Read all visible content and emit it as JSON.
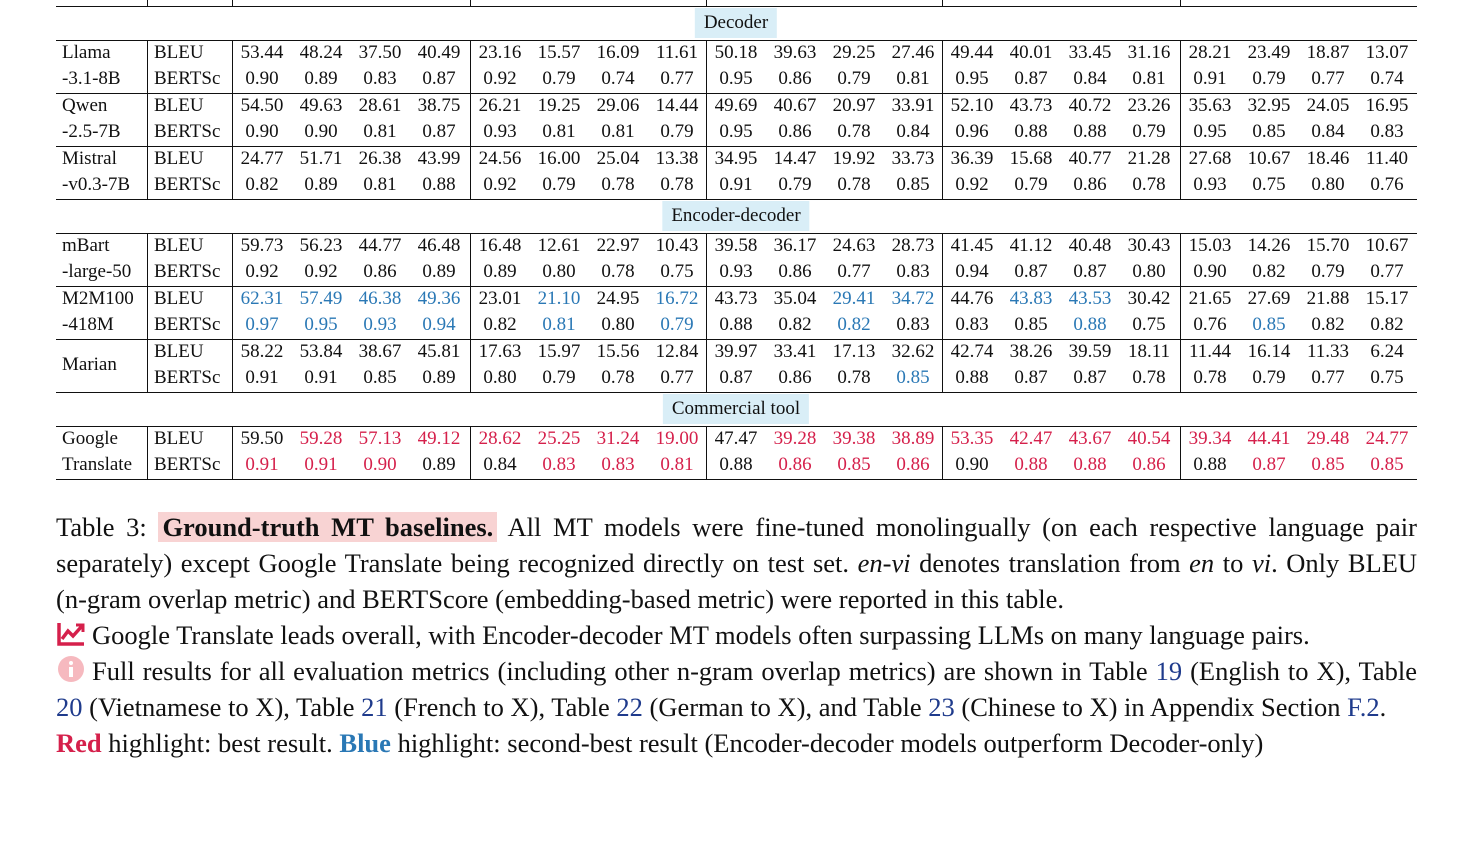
{
  "palette": {
    "k": "#111111",
    "b": "#2a78b5",
    "r": "#d5204b"
  },
  "table": {
    "sections": [
      {
        "title": "Decoder",
        "models": [
          {
            "name": [
              "Llama",
              "-3.1-8B"
            ],
            "rows": [
              {
                "metric": "BLEU",
                "values": [
                  "53.44",
                  "48.24",
                  "37.50",
                  "40.49",
                  "23.16",
                  "15.57",
                  "16.09",
                  "11.61",
                  "50.18",
                  "39.63",
                  "29.25",
                  "27.46",
                  "49.44",
                  "40.01",
                  "33.45",
                  "31.16",
                  "28.21",
                  "23.49",
                  "18.87",
                  "13.07"
                ],
                "tones": "kkkkkkkkkkkkkkkkkkkk"
              },
              {
                "metric": "BERTSc",
                "values": [
                  "0.90",
                  "0.89",
                  "0.83",
                  "0.87",
                  "0.92",
                  "0.79",
                  "0.74",
                  "0.77",
                  "0.95",
                  "0.86",
                  "0.79",
                  "0.81",
                  "0.95",
                  "0.87",
                  "0.84",
                  "0.81",
                  "0.91",
                  "0.79",
                  "0.77",
                  "0.74"
                ],
                "tones": "kkkkkkkkkkkkkkkkkkkk"
              }
            ]
          },
          {
            "name": [
              "Qwen",
              "-2.5-7B"
            ],
            "rows": [
              {
                "metric": "BLEU",
                "values": [
                  "54.50",
                  "49.63",
                  "28.61",
                  "38.75",
                  "26.21",
                  "19.25",
                  "29.06",
                  "14.44",
                  "49.69",
                  "40.67",
                  "20.97",
                  "33.91",
                  "52.10",
                  "43.73",
                  "40.72",
                  "23.26",
                  "35.63",
                  "32.95",
                  "24.05",
                  "16.95"
                ],
                "tones": "kkkkkkkkkkkkkkkkkkkk"
              },
              {
                "metric": "BERTSc",
                "values": [
                  "0.90",
                  "0.90",
                  "0.81",
                  "0.87",
                  "0.93",
                  "0.81",
                  "0.81",
                  "0.79",
                  "0.95",
                  "0.86",
                  "0.78",
                  "0.84",
                  "0.96",
                  "0.88",
                  "0.88",
                  "0.79",
                  "0.95",
                  "0.85",
                  "0.84",
                  "0.83"
                ],
                "tones": "kkkkkkkkkkkkkkkkkkkk"
              }
            ]
          },
          {
            "name": [
              "Mistral",
              "-v0.3-7B"
            ],
            "rows": [
              {
                "metric": "BLEU",
                "values": [
                  "24.77",
                  "51.71",
                  "26.38",
                  "43.99",
                  "24.56",
                  "16.00",
                  "25.04",
                  "13.38",
                  "34.95",
                  "14.47",
                  "19.92",
                  "33.73",
                  "36.39",
                  "15.68",
                  "40.77",
                  "21.28",
                  "27.68",
                  "10.67",
                  "18.46",
                  "11.40"
                ],
                "tones": "kkkkkkkkkkkkkkkkkkkk"
              },
              {
                "metric": "BERTSc",
                "values": [
                  "0.82",
                  "0.89",
                  "0.81",
                  "0.88",
                  "0.92",
                  "0.79",
                  "0.78",
                  "0.78",
                  "0.91",
                  "0.79",
                  "0.78",
                  "0.85",
                  "0.92",
                  "0.79",
                  "0.86",
                  "0.78",
                  "0.93",
                  "0.75",
                  "0.80",
                  "0.76"
                ],
                "tones": "kkkkkkkkkkkkkkkkkkkk"
              }
            ]
          }
        ]
      },
      {
        "title": "Encoder-decoder",
        "models": [
          {
            "name": [
              "mBart",
              "-large-50"
            ],
            "rows": [
              {
                "metric": "BLEU",
                "values": [
                  "59.73",
                  "56.23",
                  "44.77",
                  "46.48",
                  "16.48",
                  "12.61",
                  "22.97",
                  "10.43",
                  "39.58",
                  "36.17",
                  "24.63",
                  "28.73",
                  "41.45",
                  "41.12",
                  "40.48",
                  "30.43",
                  "15.03",
                  "14.26",
                  "15.70",
                  "10.67"
                ],
                "tones": "kkkkkkkkkkkkkkkkkkkk"
              },
              {
                "metric": "BERTSc",
                "values": [
                  "0.92",
                  "0.92",
                  "0.86",
                  "0.89",
                  "0.89",
                  "0.80",
                  "0.78",
                  "0.75",
                  "0.93",
                  "0.86",
                  "0.77",
                  "0.83",
                  "0.94",
                  "0.87",
                  "0.87",
                  "0.80",
                  "0.90",
                  "0.82",
                  "0.79",
                  "0.77"
                ],
                "tones": "kkkkkkkkkkkkkkkkkkkk"
              }
            ]
          },
          {
            "name": [
              "M2M100",
              "-418M"
            ],
            "rows": [
              {
                "metric": "BLEU",
                "values": [
                  "62.31",
                  "57.49",
                  "46.38",
                  "49.36",
                  "23.01",
                  "21.10",
                  "24.95",
                  "16.72",
                  "43.73",
                  "35.04",
                  "29.41",
                  "34.72",
                  "44.76",
                  "43.83",
                  "43.53",
                  "30.42",
                  "21.65",
                  "27.69",
                  "21.88",
                  "15.17"
                ],
                "tones": "bbbbkbkbkkbbkbbkkkkk"
              },
              {
                "metric": "BERTSc",
                "values": [
                  "0.97",
                  "0.95",
                  "0.93",
                  "0.94",
                  "0.82",
                  "0.81",
                  "0.80",
                  "0.79",
                  "0.88",
                  "0.82",
                  "0.82",
                  "0.83",
                  "0.83",
                  "0.85",
                  "0.88",
                  "0.75",
                  "0.76",
                  "0.85",
                  "0.82",
                  "0.82"
                ],
                "tones": "bbbbkbkbkkbkkkbkkbkk"
              }
            ]
          },
          {
            "name": [
              "Marian"
            ],
            "rows": [
              {
                "metric": "BLEU",
                "values": [
                  "58.22",
                  "53.84",
                  "38.67",
                  "45.81",
                  "17.63",
                  "15.97",
                  "15.56",
                  "12.84",
                  "39.97",
                  "33.41",
                  "17.13",
                  "32.62",
                  "42.74",
                  "38.26",
                  "39.59",
                  "18.11",
                  "11.44",
                  "16.14",
                  "11.33",
                  "6.24"
                ],
                "tones": "kkkkkkkkkkkkkkkkkkkk"
              },
              {
                "metric": "BERTSc",
                "values": [
                  "0.91",
                  "0.91",
                  "0.85",
                  "0.89",
                  "0.80",
                  "0.79",
                  "0.78",
                  "0.77",
                  "0.87",
                  "0.86",
                  "0.78",
                  "0.85",
                  "0.88",
                  "0.87",
                  "0.87",
                  "0.78",
                  "0.78",
                  "0.79",
                  "0.77",
                  "0.75"
                ],
                "tones": "kkkkkkkkkkkbkkkkkkkk"
              }
            ]
          }
        ]
      },
      {
        "title": "Commercial tool",
        "models": [
          {
            "name": [
              "Google",
              "Translate"
            ],
            "rows": [
              {
                "metric": "BLEU",
                "values": [
                  "59.50",
                  "59.28",
                  "57.13",
                  "49.12",
                  "28.62",
                  "25.25",
                  "31.24",
                  "19.00",
                  "47.47",
                  "39.28",
                  "39.38",
                  "38.89",
                  "53.35",
                  "42.47",
                  "43.67",
                  "40.54",
                  "39.34",
                  "44.41",
                  "29.48",
                  "24.77"
                ],
                "tones": "krrrrrrrkrrrrrrrrrrr"
              },
              {
                "metric": "BERTSc",
                "values": [
                  "0.91",
                  "0.91",
                  "0.90",
                  "0.89",
                  "0.84",
                  "0.83",
                  "0.83",
                  "0.81",
                  "0.88",
                  "0.86",
                  "0.85",
                  "0.86",
                  "0.90",
                  "0.88",
                  "0.88",
                  "0.86",
                  "0.88",
                  "0.87",
                  "0.85",
                  "0.85"
                ],
                "tones": "rrrkkrrrkrrrkrrrkrrr"
              }
            ]
          }
        ]
      }
    ]
  },
  "caption": {
    "label": "Table 3:",
    "highlight": "Ground-truth MT baselines.",
    "paragraphs": [
      [
        {
          "text": " All MT models were fine-tuned monolingually (on each respective language pair separately) except Google Translate being recognized directly on test set. "
        },
        {
          "text": "en-vi",
          "style": "italic"
        },
        {
          "text": " denotes translation from "
        },
        {
          "text": "en",
          "style": "italic"
        },
        {
          "text": " to "
        },
        {
          "text": "vi",
          "style": "italic"
        },
        {
          "text": ". Only BLEU (n-gram overlap metric) and BERTScore (embedding-based metric) were reported in this table."
        }
      ],
      [
        {
          "text": "Google Translate leads overall, with Encoder-decoder MT models often surpassing LLMs on many language pairs."
        }
      ],
      [
        {
          "text": "Full results for all evaluation metrics (including other n-gram overlap metrics) are shown in Table "
        },
        {
          "text": "19",
          "style": "link"
        },
        {
          "text": " (English to X), Table "
        },
        {
          "text": "20",
          "style": "link"
        },
        {
          "text": " (Vietnamese to X), Table "
        },
        {
          "text": "21",
          "style": "link"
        },
        {
          "text": " (French to X), Table "
        },
        {
          "text": "22",
          "style": "link"
        },
        {
          "text": " (German to X), and Table "
        },
        {
          "text": "23",
          "style": "link"
        },
        {
          "text": " (Chinese to X) in Appendix Section "
        },
        {
          "text": "F.2",
          "style": "link"
        },
        {
          "text": "."
        }
      ],
      [
        {
          "text": "Red",
          "style": "red-bold"
        },
        {
          "text": " highlight: best result. "
        },
        {
          "text": "Blue",
          "style": "blue-bold"
        },
        {
          "text": " highlight: second-best result (Encoder-decoder models outperform Decoder-only)"
        }
      ]
    ]
  }
}
